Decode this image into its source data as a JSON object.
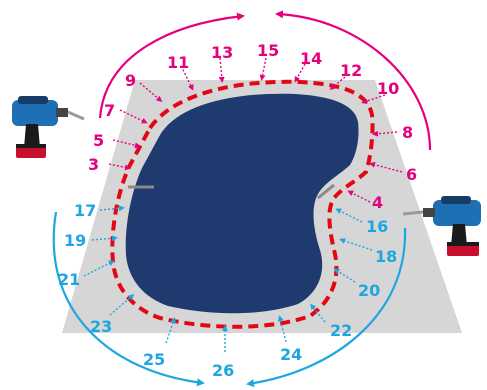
{
  "colors": {
    "magenta": "#e6007e",
    "cyan": "#1ea6e0",
    "cut_line": "#e30613",
    "pool_water": "#1e3a6e",
    "deck": "#d6d6d6",
    "drill_body": "#1f6fb5",
    "drill_battery": "#c8102e"
  },
  "icons": [
    "drill-icon",
    "drill-icon"
  ],
  "labels_magenta": [
    "3",
    "4",
    "5",
    "6",
    "7",
    "8",
    "9",
    "10",
    "11",
    "12",
    "13",
    "14",
    "15"
  ],
  "labels_cyan": [
    "16",
    "17",
    "18",
    "19",
    "20",
    "21",
    "22",
    "23",
    "24",
    "25",
    "26"
  ]
}
